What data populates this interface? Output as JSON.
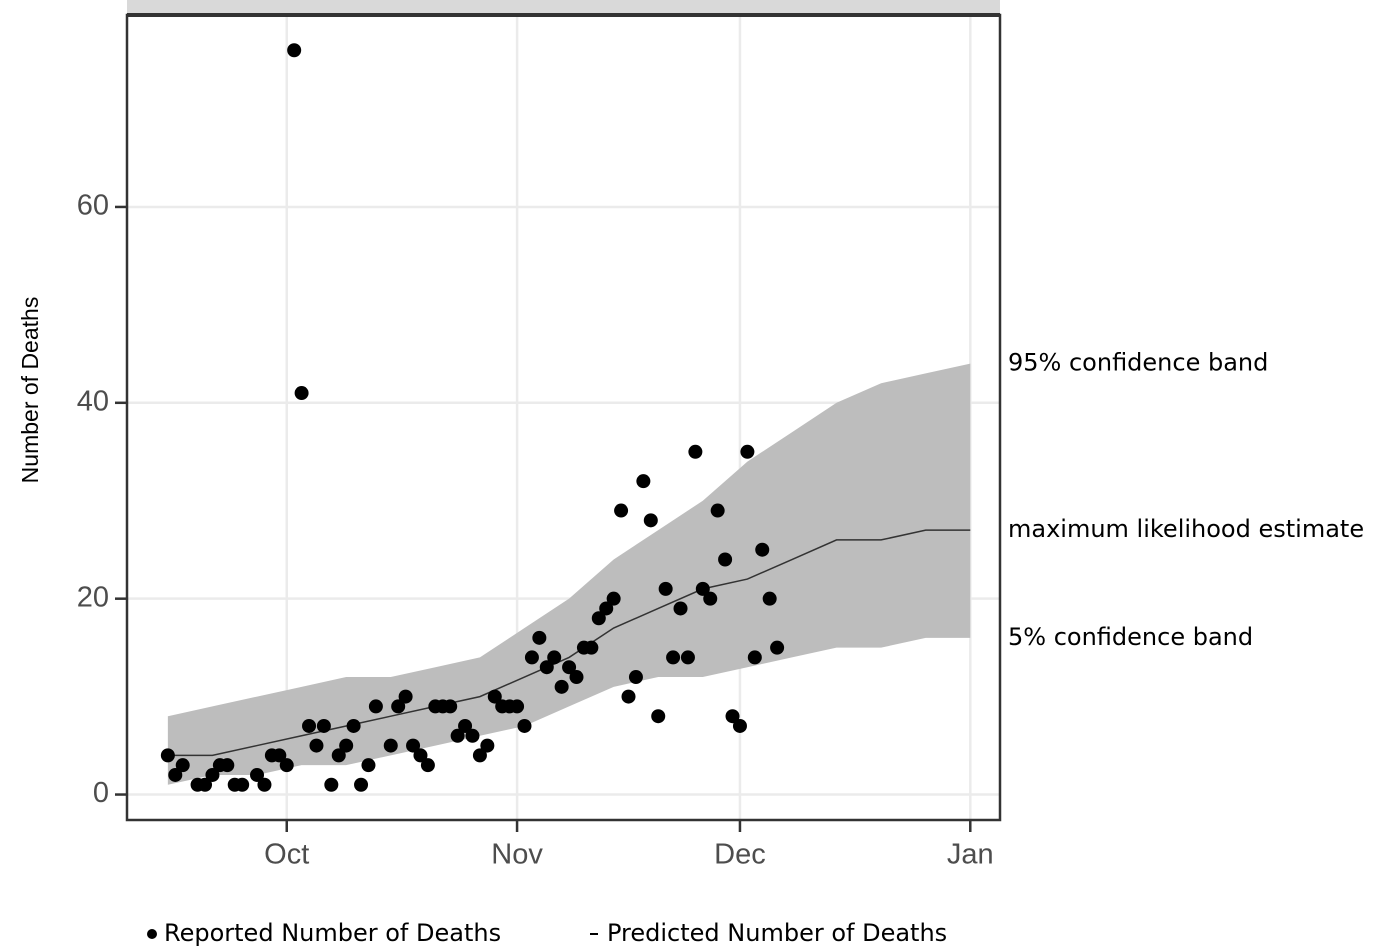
{
  "chart_data": {
    "type": "scatter",
    "y_label": "Number of Deaths",
    "xlim": [
      8.5,
      126
    ],
    "ylim": [
      -2.6,
      79.6
    ],
    "xticks": [
      {
        "value": 30,
        "label": "Oct"
      },
      {
        "value": 61,
        "label": "Nov"
      },
      {
        "value": 91,
        "label": "Dec"
      },
      {
        "value": 122,
        "label": "Jan"
      }
    ],
    "yticks": [
      0,
      20,
      40,
      60
    ],
    "grid": true,
    "series": [
      {
        "name": "Reported Number of Deaths",
        "type": "scatter",
        "color": "#000000",
        "x": [
          14,
          15,
          16,
          18,
          19,
          20,
          21,
          22,
          23,
          24,
          26,
          27,
          28,
          29,
          30,
          31,
          32,
          33,
          34,
          35,
          36,
          37,
          38,
          39,
          40,
          41,
          42,
          44,
          45,
          46,
          47,
          48,
          49,
          50,
          51,
          52,
          53,
          54,
          55,
          56,
          57,
          58,
          59,
          60,
          61,
          62,
          63,
          64,
          65,
          66,
          67,
          68,
          69,
          70,
          71,
          72,
          73,
          74,
          75,
          76,
          77,
          78,
          79,
          80,
          81,
          82,
          83,
          84,
          85,
          86,
          87,
          88,
          89,
          90,
          91,
          92,
          93,
          94,
          95,
          96
        ],
        "values": [
          4,
          2,
          3,
          1,
          1,
          2,
          3,
          3,
          1,
          1,
          2,
          1,
          4,
          4,
          3,
          76,
          41,
          7,
          5,
          7,
          1,
          4,
          5,
          7,
          1,
          3,
          9,
          5,
          9,
          10,
          5,
          4,
          3,
          9,
          9,
          9,
          6,
          7,
          6,
          4,
          5,
          10,
          9,
          9,
          9,
          7,
          14,
          16,
          13,
          14,
          11,
          13,
          12,
          15,
          15,
          18,
          19,
          20,
          29,
          10,
          12,
          32,
          28,
          8,
          21,
          14,
          19,
          14,
          35,
          21,
          20,
          29,
          24,
          8,
          7,
          35,
          14,
          25,
          20,
          15
        ]
      },
      {
        "name": "Predicted Number of Deaths",
        "type": "band-line",
        "color": "#333333",
        "band_color": "#bdbdbd",
        "x": [
          14,
          20,
          26,
          32,
          38,
          44,
          50,
          56,
          62,
          68,
          74,
          80,
          86,
          92,
          98,
          104,
          110,
          116,
          122
        ],
        "values": [
          4,
          4,
          5,
          6,
          7,
          8,
          9,
          10,
          12,
          14,
          17,
          19,
          21,
          22,
          24,
          26,
          26,
          27,
          27
        ],
        "lower": [
          1,
          2,
          2,
          3,
          3,
          4,
          5,
          6,
          7,
          9,
          11,
          12,
          12,
          13,
          14,
          15,
          15,
          16,
          16
        ],
        "upper": [
          8,
          9,
          10,
          11,
          12,
          12,
          13,
          14,
          17,
          20,
          24,
          27,
          30,
          34,
          37,
          40,
          42,
          43,
          44
        ]
      }
    ],
    "annotations": [
      {
        "text": "95% confidence band",
        "series": 1,
        "list": "upper"
      },
      {
        "text": "maximum likelihood estimate",
        "series": 1,
        "list": "values"
      },
      {
        "text": "5% confidence band",
        "series": 1,
        "list": "lower"
      }
    ]
  }
}
